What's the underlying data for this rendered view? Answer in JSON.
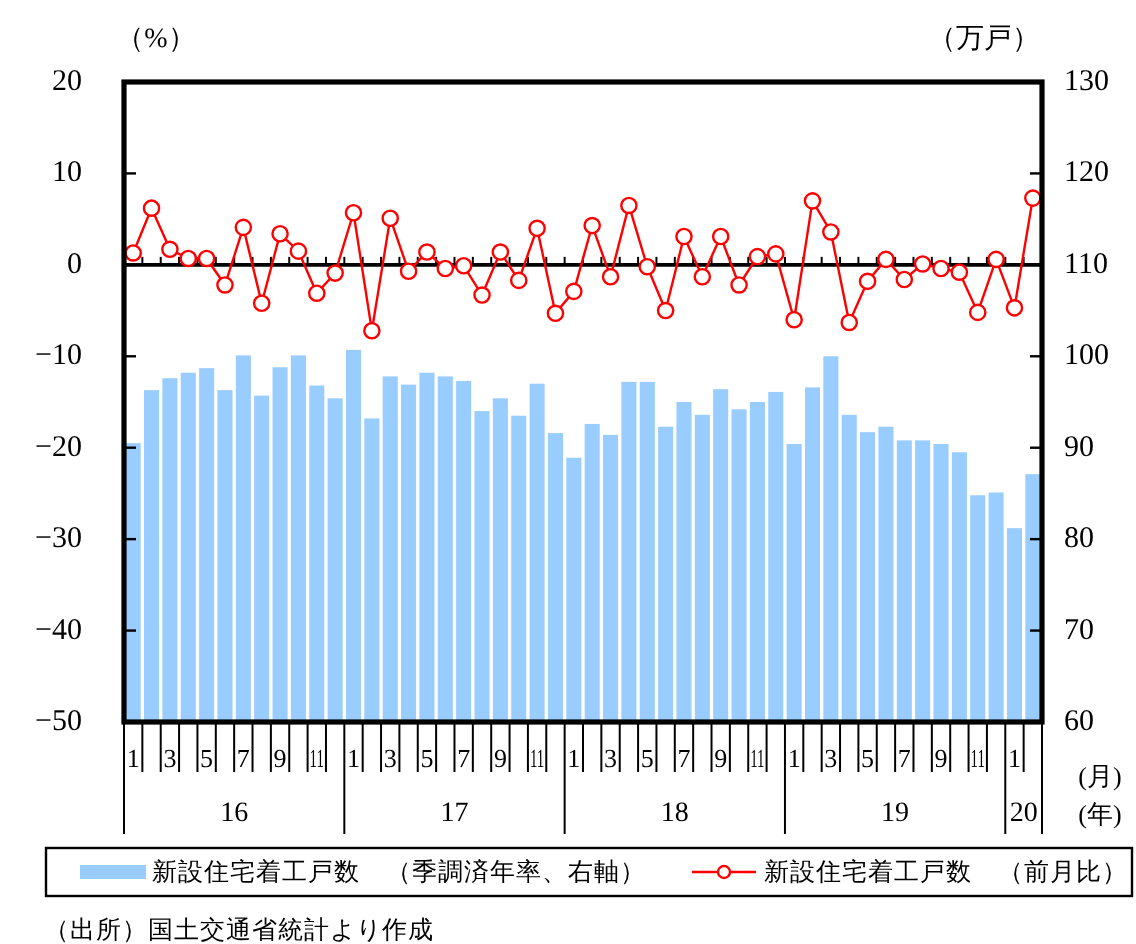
{
  "chart_data": {
    "type": "bar",
    "categories": [
      "1",
      null,
      "3",
      null,
      "5",
      null,
      "7",
      null,
      "9",
      null,
      "11",
      null,
      "1",
      null,
      "3",
      null,
      "5",
      null,
      "7",
      null,
      "9",
      null,
      "11",
      null,
      "1",
      null,
      "3",
      null,
      "5",
      null,
      "7",
      null,
      "9",
      null,
      "11",
      null,
      "1",
      null,
      "3",
      null,
      "5",
      null,
      "7",
      null,
      "9",
      null,
      "11",
      null,
      "1",
      null
    ],
    "series": [
      {
        "name": "新設住宅着工戸数　（季調済年率、右軸）",
        "axis": "y2",
        "color": "#99ccff",
        "values": [
          90.5,
          96.3,
          97.6,
          98.2,
          98.7,
          96.3,
          100.1,
          95.7,
          98.8,
          100.1,
          96.8,
          95.4,
          100.7,
          93.2,
          97.8,
          96.9,
          98.2,
          97.8,
          97.3,
          94.0,
          95.4,
          93.5,
          97.0,
          91.6,
          88.9,
          92.6,
          91.4,
          97.2,
          97.2,
          92.3,
          95.0,
          93.6,
          96.4,
          94.2,
          95.0,
          96.1,
          90.4,
          96.6,
          100.0,
          93.6,
          91.7,
          92.3,
          90.8,
          90.8,
          90.4,
          89.5,
          84.8,
          85.1,
          81.2,
          87.1
        ]
      },
      {
        "name": "新設住宅着工戸数　（前月比）",
        "type": "line",
        "color": "#ff0000",
        "marker": "circle",
        "values": [
          1.3,
          6.2,
          1.7,
          0.7,
          0.7,
          -2.2,
          4.1,
          -4.2,
          3.4,
          1.5,
          -3.1,
          -0.9,
          5.7,
          -7.2,
          5.1,
          -0.7,
          1.4,
          -0.4,
          -0.1,
          -3.3,
          1.4,
          -1.7,
          4.0,
          -5.3,
          -2.9,
          4.3,
          -1.3,
          6.5,
          -0.2,
          -5.0,
          3.1,
          -1.3,
          3.1,
          -2.2,
          0.9,
          1.2,
          -6.0,
          7.0,
          3.6,
          -6.3,
          -1.8,
          0.6,
          -1.6,
          0.1,
          -0.4,
          -0.8,
          -5.2,
          0.6,
          -4.7,
          7.3
        ]
      }
    ],
    "ylabel": "（%）",
    "y2label": "（万戸）",
    "xlabel": "(月)",
    "ylim": [
      -50,
      20
    ],
    "yticks": [
      -50,
      -40,
      -30,
      -20,
      -10,
      0,
      10,
      20
    ],
    "y2lim": [
      60,
      130
    ],
    "y2ticks": [
      60,
      70,
      80,
      90,
      100,
      110,
      120,
      130
    ],
    "ref_lines": [
      {
        "axis": "y",
        "value": 0,
        "color": "#000000"
      }
    ],
    "legend": "bottom",
    "annotations": [
      "16",
      "17",
      "18",
      "19",
      "20",
      "(年)",
      "（出所）国土交通省統計より作成"
    ]
  }
}
